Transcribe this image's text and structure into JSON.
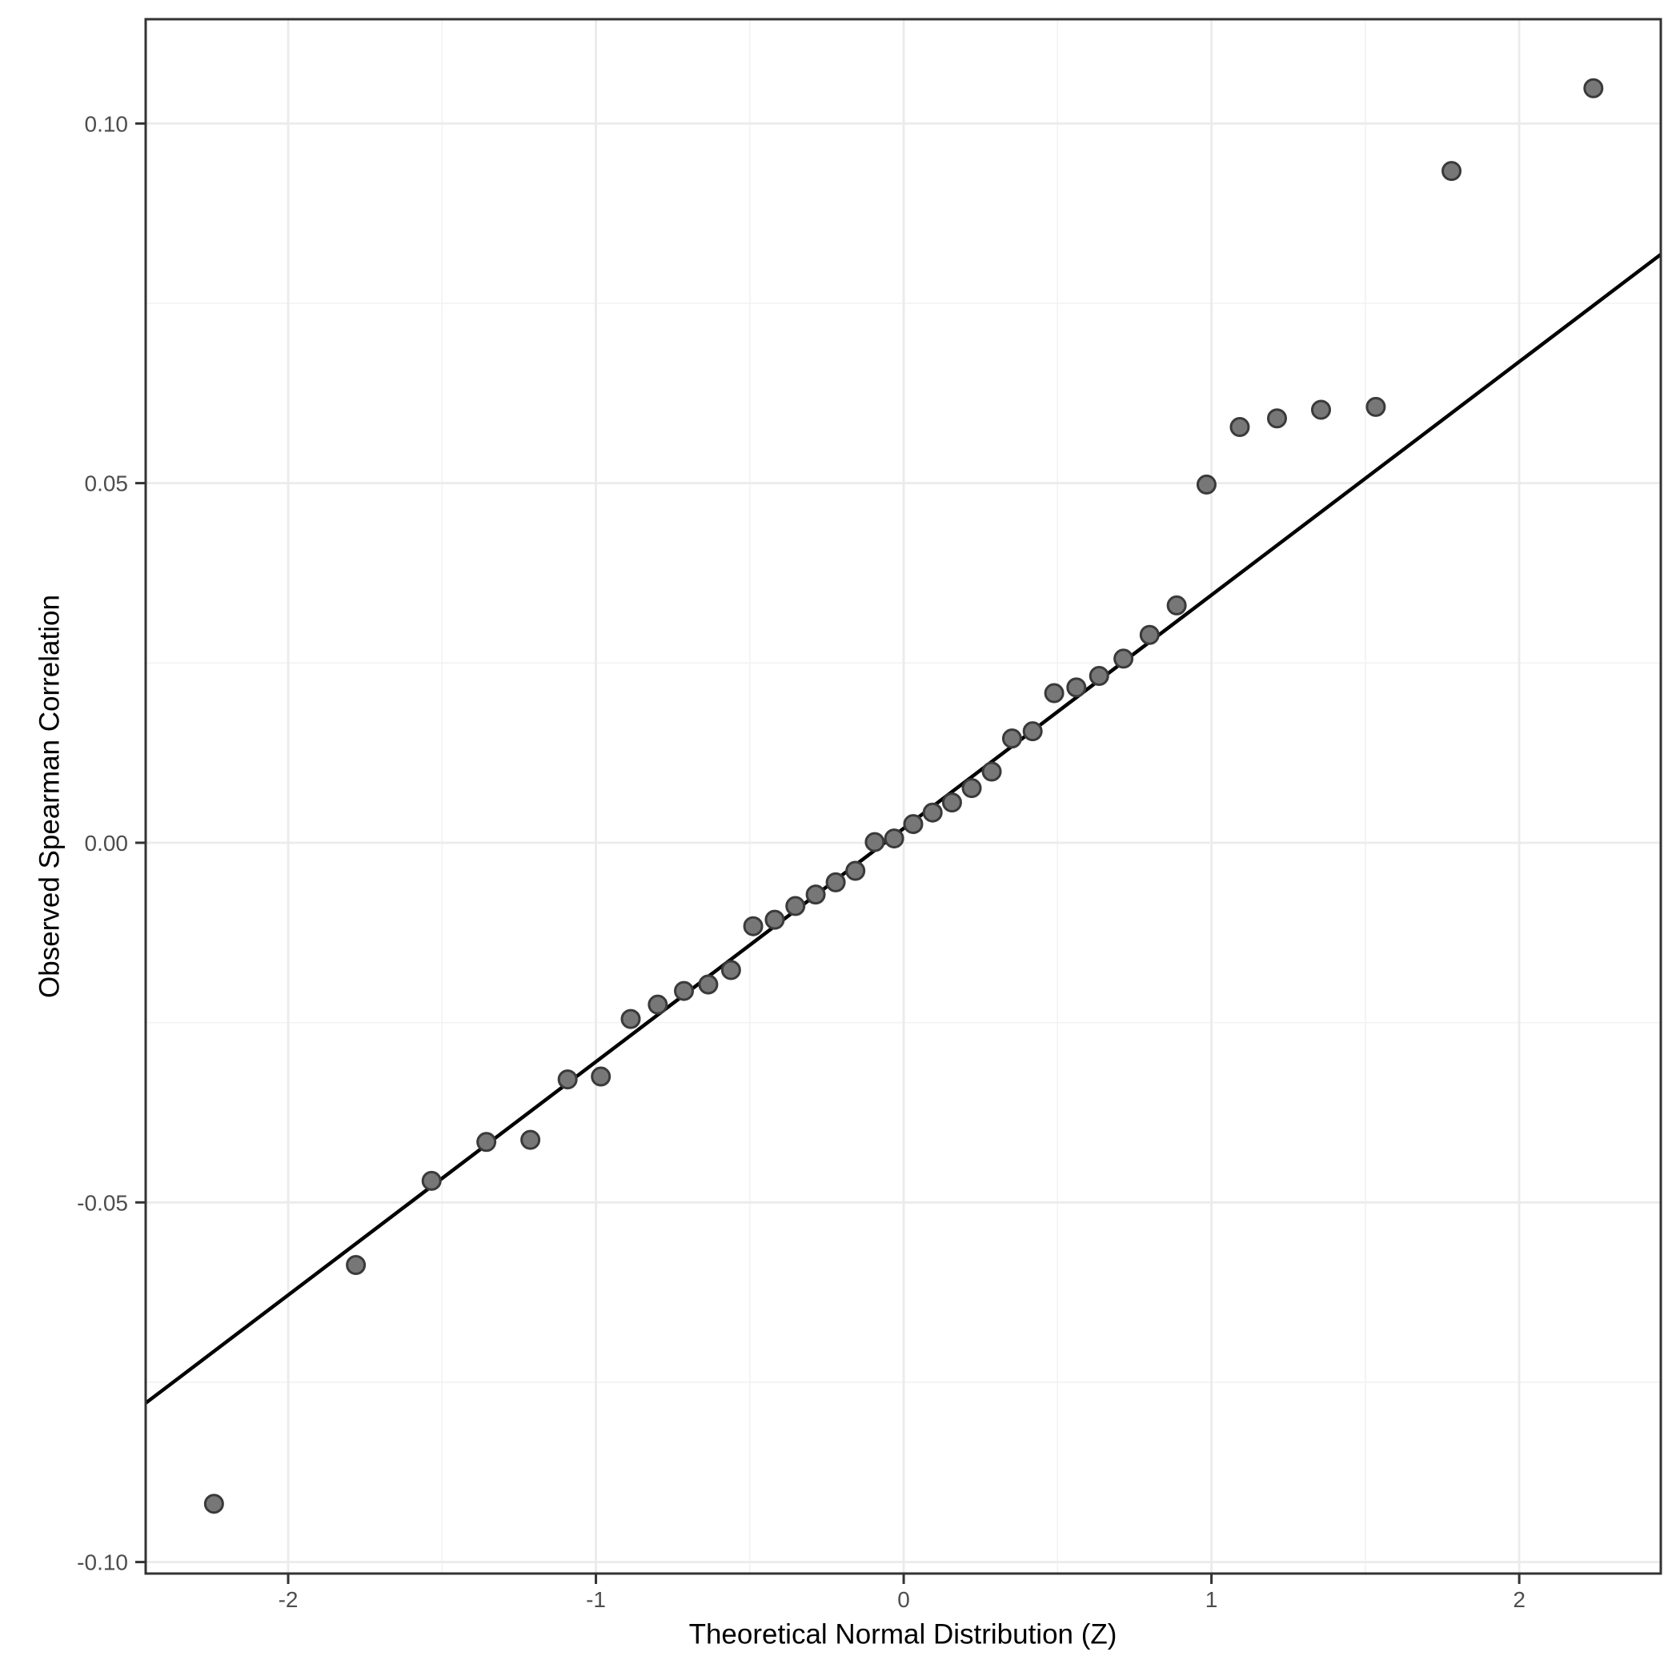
{
  "figure": {
    "background_color": "#ffffff",
    "panel_background_color": "#ffffff",
    "panel_border_color": "#333333",
    "grid_major_color": "#ebebeb",
    "grid_minor_color": "#f2f2f2",
    "tick_mark_color": "#333333",
    "tick_label_color": "#4d4d4d",
    "axis_title_color": "#000000"
  },
  "chart_data": {
    "type": "scatter",
    "title": "",
    "xlabel": "Theoretical Normal Distribution (Z)",
    "ylabel": "Observed Spearman Correlation",
    "xlim": [
      -2.463,
      2.46
    ],
    "ylim": [
      -0.1016,
      0.1145
    ],
    "grid": true,
    "legend_position": "none",
    "x_ticks": {
      "values": [
        -2,
        -1,
        0,
        1,
        2
      ],
      "labels": [
        "-2",
        "-1",
        "0",
        "1",
        "2"
      ]
    },
    "y_ticks": {
      "values": [
        0.1,
        0.05,
        0.0,
        -0.05,
        -0.1
      ],
      "labels": [
        "0.10",
        "0.05",
        "0.00",
        "-0.05",
        "-0.10"
      ]
    },
    "x_minor_gridlines": [
      -1.5,
      -0.5,
      0.5,
      1.5
    ],
    "y_minor_gridlines": [
      -0.075,
      -0.025,
      0.025,
      0.075
    ],
    "series": [
      {
        "name": "sample-quantiles",
        "marker": {
          "shape": "circle",
          "fill": "#777777",
          "stroke": "#3a3a3a",
          "radius": 11,
          "stroke_width": 3
        },
        "x": [
          -2.241,
          -1.78,
          -1.534,
          -1.356,
          -1.213,
          -1.092,
          -0.984,
          -0.887,
          -0.799,
          -0.714,
          -0.635,
          -0.561,
          -0.489,
          -0.419,
          -0.352,
          -0.286,
          -0.221,
          -0.157,
          -0.094,
          -0.031,
          0.031,
          0.094,
          0.157,
          0.221,
          0.286,
          0.352,
          0.419,
          0.489,
          0.561,
          0.635,
          0.714,
          0.799,
          0.887,
          0.984,
          1.092,
          1.213,
          1.356,
          1.534,
          1.78,
          2.241
        ],
        "y": [
          -0.0919,
          -0.0587,
          -0.047,
          -0.0416,
          -0.0413,
          -0.0329,
          -0.0325,
          -0.0245,
          -0.0225,
          -0.0206,
          -0.0197,
          -0.0177,
          -0.0116,
          -0.0107,
          -0.0088,
          -0.0072,
          -0.0055,
          -0.0039,
          0.0001,
          0.0006,
          0.0026,
          0.0042,
          0.0056,
          0.0076,
          0.0099,
          0.0145,
          0.0155,
          0.0208,
          0.0216,
          0.0232,
          0.0256,
          0.0289,
          0.033,
          0.0498,
          0.0578,
          0.059,
          0.0602,
          0.0606,
          0.0934,
          0.1049
        ]
      }
    ],
    "reference_line": {
      "color": "#000000",
      "width": 4.5,
      "slope": 0.0324,
      "intercept": 0.0019,
      "x1": -2.463,
      "y1": -0.0779,
      "x2": 2.46,
      "y2": 0.0818
    }
  }
}
